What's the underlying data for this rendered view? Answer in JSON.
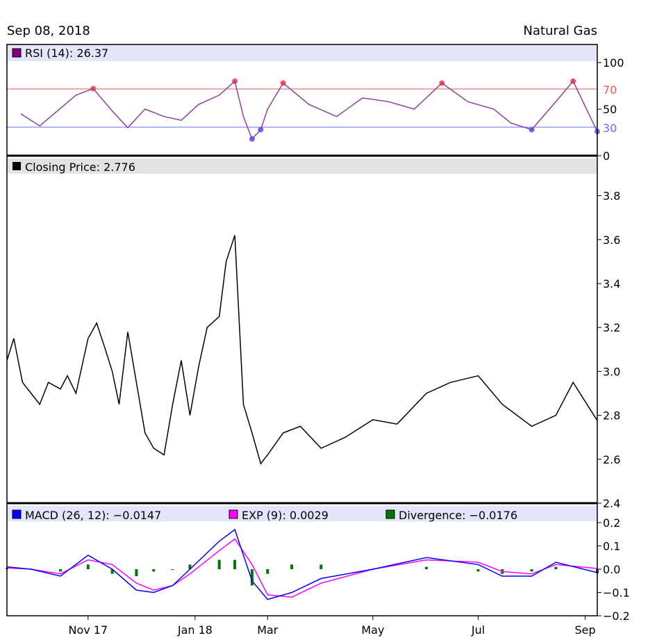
{
  "header": {
    "date": "Sep 08, 2018",
    "symbol": "Natural Gas"
  },
  "colors": {
    "rsi_line": "#8b3fa0",
    "rsi_swatch": "#800080",
    "overbought": "#ff5555",
    "oversold": "#6a6aff",
    "price_line": "#000000",
    "macd": "#0000ff",
    "exp": "#ff00ff",
    "divergence": "#007700",
    "legend_bg_rsi": "#e4e4fb",
    "legend_bg_price": "#e3e3e3",
    "legend_bg_macd": "#e4e4fb"
  },
  "legends": {
    "rsi": "RSI (14): 26.37",
    "price": "Closing Price: 2.776",
    "macd": "MACD (26, 12): −0.0147",
    "exp": "EXP (9): 0.0029",
    "divergence": "Divergence: −0.0176"
  },
  "chart_data": [
    {
      "type": "line",
      "panel": "rsi",
      "legend": "RSI (14): 26.37",
      "ylim": [
        0,
        100
      ],
      "yticks": [
        "100",
        "50",
        "0"
      ],
      "reference_lines": [
        {
          "value": 70,
          "label": "70"
        },
        {
          "value": 30,
          "label": "30"
        }
      ],
      "x_dates": [
        "2017-10-09",
        "2017-10-20",
        "2017-11-10",
        "2017-11-20",
        "2017-12-01",
        "2017-12-10",
        "2017-12-20",
        "2017-12-31",
        "2018-01-10",
        "2018-01-20",
        "2018-02-01",
        "2018-02-10",
        "2018-02-15",
        "2018-02-20",
        "2018-02-25",
        "2018-03-01",
        "2018-03-10",
        "2018-03-25",
        "2018-04-10",
        "2018-04-25",
        "2018-05-10",
        "2018-05-25",
        "2018-06-10",
        "2018-06-25",
        "2018-07-10",
        "2018-07-20",
        "2018-08-01",
        "2018-08-15",
        "2018-08-25",
        "2018-09-08"
      ],
      "series": [
        {
          "name": "RSI (14)",
          "values": [
            45,
            32,
            65,
            72,
            48,
            30,
            50,
            42,
            38,
            55,
            65,
            80,
            42,
            18,
            28,
            50,
            78,
            55,
            42,
            62,
            58,
            50,
            78,
            58,
            50,
            35,
            28,
            58,
            80,
            26
          ]
        }
      ]
    },
    {
      "type": "line",
      "panel": "price",
      "legend": "Closing Price: 2.776",
      "ylim": [
        2.4,
        3.9
      ],
      "yticks": [
        "3.8",
        "3.6",
        "3.4",
        "3.2",
        "3.0",
        "2.8",
        "2.6",
        "2.4"
      ],
      "x_dates": [
        "2017-10-01",
        "2017-10-05",
        "2017-10-10",
        "2017-10-15",
        "2017-10-20",
        "2017-10-25",
        "2017-11-01",
        "2017-11-05",
        "2017-11-10",
        "2017-11-17",
        "2017-11-22",
        "2017-11-27",
        "2017-12-01",
        "2017-12-05",
        "2017-12-10",
        "2017-12-15",
        "2017-12-20",
        "2017-12-25",
        "2017-12-31",
        "2018-01-05",
        "2018-01-10",
        "2018-01-15",
        "2018-01-20",
        "2018-01-25",
        "2018-02-01",
        "2018-02-05",
        "2018-02-10",
        "2018-02-15",
        "2018-02-20",
        "2018-02-25",
        "2018-03-01",
        "2018-03-10",
        "2018-03-20",
        "2018-04-01",
        "2018-04-15",
        "2018-05-01",
        "2018-05-15",
        "2018-06-01",
        "2018-06-15",
        "2018-07-01",
        "2018-07-15",
        "2018-08-01",
        "2018-08-15",
        "2018-08-25",
        "2018-09-08"
      ],
      "series": [
        {
          "name": "Closing Price",
          "values": [
            3.05,
            3.15,
            2.95,
            2.9,
            2.85,
            2.95,
            2.92,
            2.98,
            2.9,
            3.15,
            3.22,
            3.1,
            3.0,
            2.85,
            3.18,
            2.95,
            2.72,
            2.65,
            2.62,
            2.85,
            3.05,
            2.8,
            3.02,
            3.2,
            3.25,
            3.5,
            3.62,
            2.85,
            2.72,
            2.58,
            2.62,
            2.72,
            2.75,
            2.65,
            2.7,
            2.78,
            2.76,
            2.9,
            2.95,
            2.98,
            2.85,
            2.75,
            2.8,
            2.95,
            2.776
          ]
        }
      ]
    },
    {
      "type": "line",
      "panel": "macd",
      "legend": "MACD (26, 12): −0.0147",
      "ylim": [
        -0.2,
        0.2
      ],
      "yticks": [
        "0.2",
        "0.1",
        "0.0",
        "−0.1",
        "−0.2"
      ],
      "x_dates": [
        "2017-10-01",
        "2017-10-15",
        "2017-11-01",
        "2017-11-17",
        "2017-12-01",
        "2017-12-15",
        "2017-12-25",
        "2018-01-05",
        "2018-01-15",
        "2018-02-01",
        "2018-02-10",
        "2018-02-20",
        "2018-03-01",
        "2018-03-15",
        "2018-04-01",
        "2018-05-01",
        "2018-06-01",
        "2018-07-01",
        "2018-07-15",
        "2018-08-01",
        "2018-08-15",
        "2018-09-08"
      ],
      "series": [
        {
          "name": "MACD",
          "values": [
            0.01,
            0.0,
            -0.03,
            0.06,
            0.0,
            -0.09,
            -0.1,
            -0.07,
            0.0,
            0.12,
            0.17,
            -0.05,
            -0.13,
            -0.1,
            -0.04,
            0.0,
            0.05,
            0.02,
            -0.03,
            -0.03,
            0.03,
            -0.0147
          ]
        },
        {
          "name": "EXP",
          "values": [
            0.005,
            0.0,
            -0.02,
            0.04,
            0.02,
            -0.06,
            -0.09,
            -0.07,
            -0.02,
            0.08,
            0.13,
            0.02,
            -0.11,
            -0.12,
            -0.06,
            0.0,
            0.04,
            0.03,
            -0.01,
            -0.02,
            0.02,
            0.0029
          ]
        },
        {
          "name": "Divergence",
          "values": [
            0.005,
            0.0,
            -0.01,
            0.02,
            -0.02,
            -0.03,
            -0.01,
            0.0,
            0.02,
            0.04,
            0.04,
            -0.07,
            -0.02,
            0.02,
            0.02,
            0.0,
            0.01,
            -0.01,
            -0.02,
            -0.01,
            0.01,
            -0.0176
          ]
        }
      ]
    }
  ],
  "x_axis": {
    "tick_labels": [
      {
        "label": "Nov 17",
        "date": "2017-11-17"
      },
      {
        "label": "Jan 18",
        "date": "2018-01-18"
      },
      {
        "label": "Mar",
        "date": "2018-03-01"
      },
      {
        "label": "May",
        "date": "2018-05-01"
      },
      {
        "label": "Jul",
        "date": "2018-07-01"
      },
      {
        "label": "Sep",
        "date": "2018-09-01"
      }
    ],
    "start": "2017-10-01",
    "end": "2018-09-08"
  }
}
